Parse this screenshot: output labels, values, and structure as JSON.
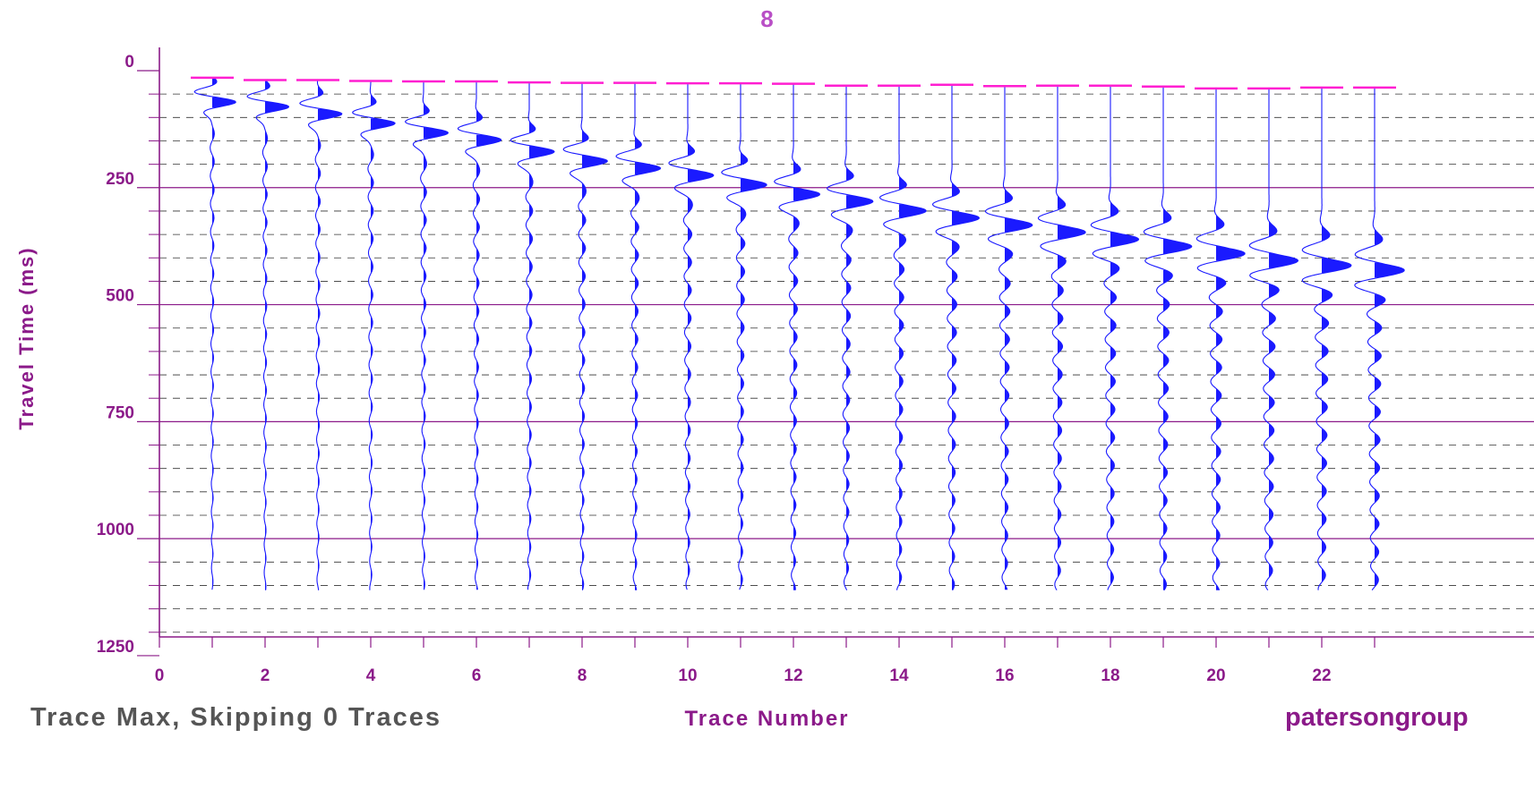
{
  "chart_data": {
    "type": "seismic-wiggle",
    "title": "8",
    "xlabel": "Trace Number",
    "ylabel": "Travel Time (ms)",
    "xlim": [
      0,
      23.5
    ],
    "ylim": [
      0,
      1290
    ],
    "ylim_reversed": true,
    "x_ticks": [
      0,
      2,
      4,
      6,
      8,
      10,
      12,
      14,
      16,
      18,
      20,
      22
    ],
    "y_ticks": [
      0,
      250,
      500,
      750,
      1000,
      1250
    ],
    "y_minor_grid": [
      50,
      100,
      150,
      200,
      300,
      350,
      400,
      450,
      550,
      600,
      650,
      700,
      800,
      850,
      900,
      950,
      1050,
      1100,
      1150,
      1200
    ],
    "grid_major": "solid",
    "grid_minor": "dashed",
    "trace_end_ms": 1110,
    "traces": [
      1,
      2,
      3,
      4,
      5,
      6,
      7,
      8,
      9,
      10,
      11,
      12,
      13,
      14,
      15,
      16,
      17,
      18,
      19,
      20,
      21,
      22,
      23
    ],
    "first_break_picks_ms": [
      15,
      20,
      20,
      22,
      23,
      23,
      25,
      26,
      26,
      27,
      27,
      28,
      32,
      32,
      30,
      33,
      32,
      32,
      34,
      38,
      38,
      36,
      36
    ],
    "wavelet_center_ms": [
      60,
      70,
      85,
      105,
      125,
      140,
      165,
      185,
      200,
      215,
      235,
      255,
      270,
      290,
      305,
      320,
      335,
      350,
      365,
      380,
      395,
      405,
      415
    ],
    "colors": {
      "trace": "#1a1aff",
      "picks": "#ff1fd1",
      "grid": "#8b1a89",
      "axis_labels": "#8b1a89",
      "title": "#b94fc6"
    }
  },
  "footer": {
    "left": "Trace Max, Skipping 0 Traces",
    "right": "patersongroup"
  }
}
